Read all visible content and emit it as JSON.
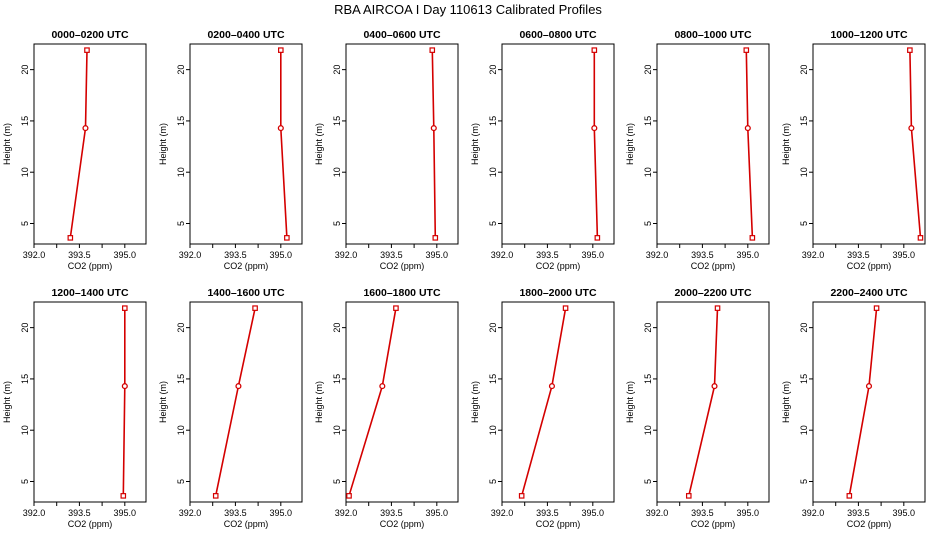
{
  "title": "RBA AIRCOA I  Day 110613  Calibrated Profiles",
  "colors": {
    "line": "#d40000",
    "axis": "#000000"
  },
  "chart_data": {
    "type": "line",
    "xlabel": "CO2 (ppm)",
    "ylabel": "Height (m)",
    "xlim": [
      392.0,
      395.7
    ],
    "ylim": [
      3.0,
      22.5
    ],
    "xticks": [
      "392.0",
      "393.5",
      "395.0"
    ],
    "yticks": [
      "5",
      "10",
      "15",
      "20"
    ],
    "heights": [
      3.6,
      14.3,
      21.9
    ],
    "panels": [
      {
        "title": "0000–0200 UTC",
        "co2": [
          393.2,
          393.7,
          393.75
        ]
      },
      {
        "title": "0200–0400 UTC",
        "co2": [
          395.2,
          395.0,
          395.0
        ]
      },
      {
        "title": "0400–0600 UTC",
        "co2": [
          394.95,
          394.9,
          394.85
        ]
      },
      {
        "title": "0600–0800 UTC",
        "co2": [
          395.15,
          395.05,
          395.05
        ]
      },
      {
        "title": "0800–1000 UTC",
        "co2": [
          395.15,
          395.0,
          394.95
        ]
      },
      {
        "title": "1000–1200 UTC",
        "co2": [
          395.55,
          395.25,
          395.2
        ]
      },
      {
        "title": "1200–1400 UTC",
        "co2": [
          394.95,
          395.0,
          395.0
        ]
      },
      {
        "title": "1400–1600 UTC",
        "co2": [
          392.85,
          393.6,
          394.15
        ]
      },
      {
        "title": "1600–1800 UTC",
        "co2": [
          392.1,
          393.2,
          393.65
        ]
      },
      {
        "title": "1800–2000 UTC",
        "co2": [
          392.65,
          393.65,
          394.1
        ]
      },
      {
        "title": "2000–2200 UTC",
        "co2": [
          393.05,
          393.9,
          394.0
        ]
      },
      {
        "title": "2200–2400 UTC",
        "co2": [
          393.2,
          393.85,
          394.1
        ]
      }
    ]
  }
}
